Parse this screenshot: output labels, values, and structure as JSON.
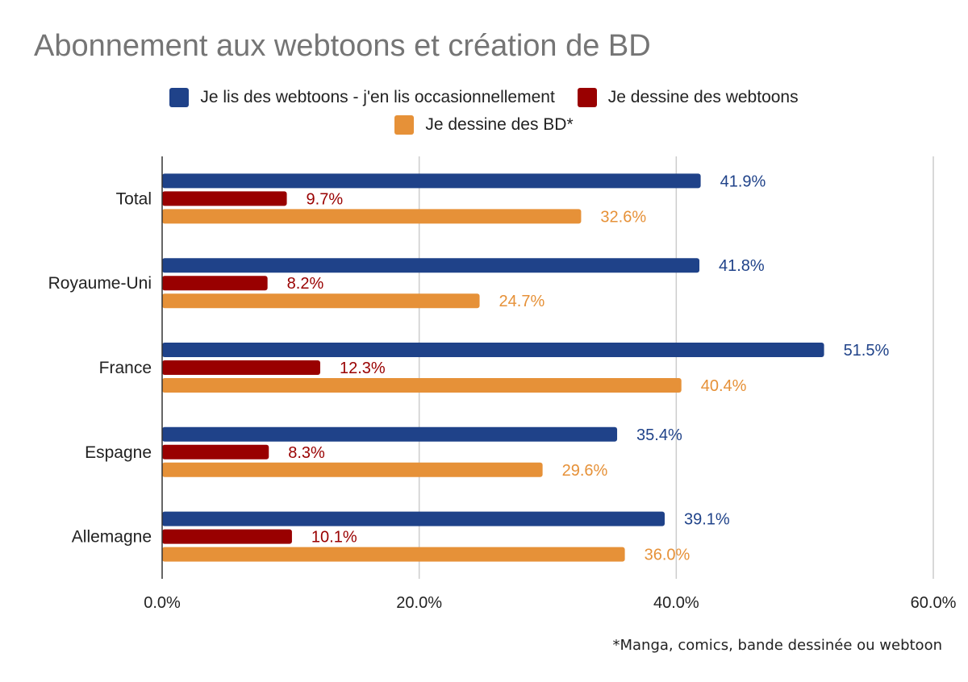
{
  "chart_data": {
    "type": "bar",
    "orientation": "horizontal",
    "title": "Abonnement aux webtoons et création de BD",
    "categories": [
      "Total",
      "Royaume-Uni",
      "France",
      "Espagne",
      "Allemagne"
    ],
    "series": [
      {
        "name": "Je lis des webtoons - j'en lis occasionnellement",
        "color": "#1f4289",
        "values": [
          41.9,
          41.8,
          51.5,
          35.4,
          39.1
        ],
        "labels": [
          "41.9%",
          "41.8%",
          "51.5%",
          "35.4%",
          "39.1%"
        ]
      },
      {
        "name": "Je dessine des webtoons",
        "color": "#990000",
        "values": [
          9.7,
          8.2,
          12.3,
          8.3,
          10.1
        ],
        "labels": [
          "9.7%",
          "8.2%",
          "12.3%",
          "8.3%",
          "10.1%"
        ]
      },
      {
        "name": "Je dessine des BD*",
        "color": "#e69138",
        "values": [
          32.6,
          24.7,
          40.4,
          29.6,
          36.0
        ],
        "labels": [
          "32.6%",
          "24.7%",
          "40.4%",
          "29.6%",
          "36.0%"
        ]
      }
    ],
    "xlim": [
      0,
      60
    ],
    "xticks": [
      0,
      20,
      40,
      60
    ],
    "xtick_labels": [
      "0.0%",
      "20.0%",
      "40.0%",
      "60.0%"
    ],
    "grid": true,
    "legend_position": "top",
    "xlabel": "",
    "ylabel": "",
    "footnote": "*Manga, comics, bande dessinée ou webtoon"
  }
}
